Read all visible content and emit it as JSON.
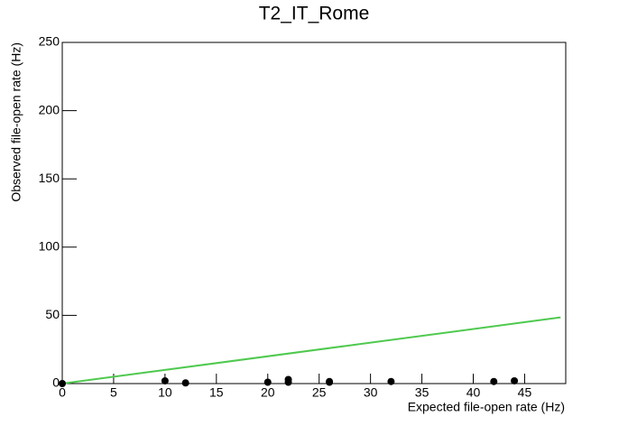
{
  "chart_data": {
    "type": "scatter",
    "title": "T2_IT_Rome",
    "x_label": "Expected file-open rate (Hz)",
    "y_label": "Observed file-open rate (Hz)",
    "series": [
      {
        "color": "#000000",
        "x": [
          0,
          10,
          12,
          20,
          22,
          22,
          26,
          26,
          32,
          42,
          44
        ],
        "values": [
          0,
          2,
          0.5,
          1,
          3,
          1,
          1.5,
          1,
          1.5,
          1.5,
          2
        ]
      }
    ],
    "reference_line": {
      "color": "#4fc94f",
      "x": [
        0,
        48.5
      ],
      "values": [
        0,
        48.5
      ]
    },
    "xlim": [
      0,
      49
    ],
    "xticks": [
      0,
      5,
      10,
      15,
      20,
      25,
      30,
      35,
      40,
      45
    ],
    "ylim": [
      0,
      250
    ],
    "yticks": [
      0,
      50,
      100,
      150,
      200,
      250
    ]
  }
}
